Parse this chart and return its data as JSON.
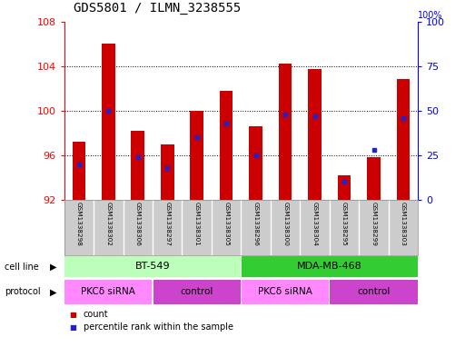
{
  "title": "GDS5801 / ILMN_3238555",
  "samples": [
    "GSM1338298",
    "GSM1338302",
    "GSM1338306",
    "GSM1338297",
    "GSM1338301",
    "GSM1338305",
    "GSM1338296",
    "GSM1338300",
    "GSM1338304",
    "GSM1338295",
    "GSM1338299",
    "GSM1338303"
  ],
  "bar_values": [
    97.2,
    106.0,
    98.2,
    97.0,
    100.0,
    101.8,
    98.6,
    104.2,
    103.7,
    94.2,
    95.8,
    102.8
  ],
  "percentile_values": [
    20.0,
    50.0,
    24.0,
    18.0,
    35.0,
    43.0,
    25.0,
    48.0,
    47.0,
    10.0,
    28.0,
    46.0
  ],
  "ymin": 92,
  "ymax": 108,
  "yticks_left": [
    92,
    96,
    100,
    104,
    108
  ],
  "yticks_right": [
    0,
    25,
    50,
    75,
    100
  ],
  "bar_color": "#cc0000",
  "percentile_color": "#2222cc",
  "bar_width": 0.45,
  "cell_line_groups": [
    {
      "label": "BT-549",
      "start": 0,
      "end": 5,
      "color": "#bbffbb"
    },
    {
      "label": "MDA-MB-468",
      "start": 6,
      "end": 11,
      "color": "#33cc33"
    }
  ],
  "protocol_groups": [
    {
      "label": "PKCδ siRNA",
      "start": 0,
      "end": 2,
      "color": "#ff88ff"
    },
    {
      "label": "control",
      "start": 3,
      "end": 5,
      "color": "#cc44cc"
    },
    {
      "label": "PKCδ siRNA",
      "start": 6,
      "end": 8,
      "color": "#ff88ff"
    },
    {
      "label": "control",
      "start": 9,
      "end": 11,
      "color": "#cc44cc"
    }
  ],
  "bg_color": "#cccccc",
  "plot_bg": "#ffffff",
  "label_row1": "cell line",
  "label_row2": "protocol",
  "legend_count_color": "#cc0000",
  "legend_percentile_color": "#2222cc",
  "grid_dotted_at": [
    96,
    100,
    104
  ]
}
